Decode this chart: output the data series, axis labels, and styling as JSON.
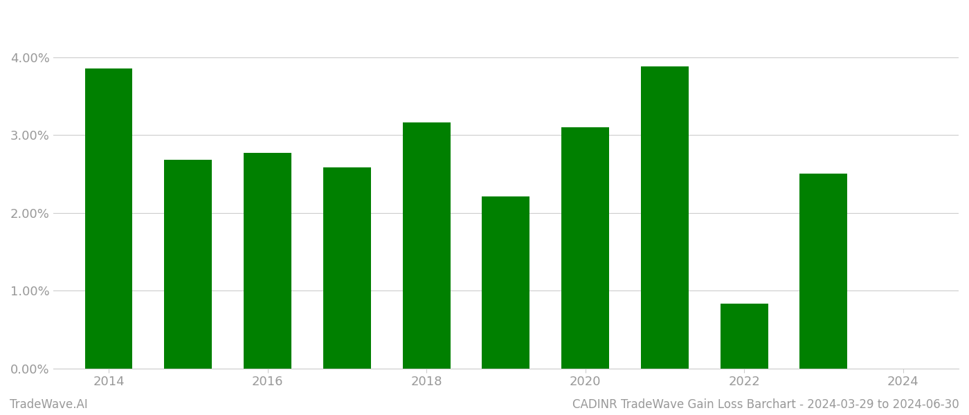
{
  "years": [
    2014,
    2015,
    2016,
    2017,
    2018,
    2019,
    2020,
    2021,
    2022,
    2023
  ],
  "values": [
    0.0385,
    0.0268,
    0.0277,
    0.0258,
    0.0316,
    0.0221,
    0.031,
    0.0388,
    0.0083,
    0.025
  ],
  "bar_color": "#008000",
  "background_color": "#ffffff",
  "title": "CADINR TradeWave Gain Loss Barchart - 2024-03-29 to 2024-06-30",
  "footer_left": "TradeWave.AI",
  "ylim": [
    0,
    0.046
  ],
  "yticks": [
    0.0,
    0.01,
    0.02,
    0.03,
    0.04
  ],
  "xtick_years": [
    2014,
    2016,
    2018,
    2020,
    2022,
    2024
  ],
  "xlim": [
    2013.3,
    2024.7
  ],
  "grid_color": "#cccccc",
  "tick_label_color": "#999999",
  "footer_color": "#999999",
  "title_fontsize": 13,
  "tick_fontsize": 13,
  "footer_fontsize": 12,
  "bar_width": 0.6
}
